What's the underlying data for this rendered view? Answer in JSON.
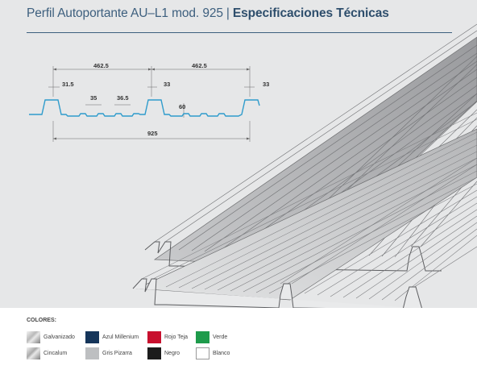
{
  "header": {
    "title_light": "Perfil Autoportante AU–L1 mod. 925",
    "separator": "|",
    "title_bold": "Especificaciones Técnicas"
  },
  "diagram": {
    "labels": {
      "half_width_left": "462.5",
      "half_width_right": "462.5",
      "rib_top_width": "31.5",
      "rib_width_right_a": "33",
      "rib_width_right_b": "33",
      "groove_spacing": "35",
      "groove_gap": "36.5",
      "height": "60",
      "total_width": "925"
    }
  },
  "legend": {
    "title": "COLORES:",
    "colors": [
      {
        "label": "Galvanizado",
        "color": "#b9b9b9",
        "metallic": true
      },
      {
        "label": "Azul Millenium",
        "color": "#15355a",
        "metallic": false
      },
      {
        "label": "Rojo Teja",
        "color": "#c8102e",
        "metallic": false
      },
      {
        "label": "Verde",
        "color": "#1e9b4b",
        "metallic": false
      },
      {
        "label": "Cincalum",
        "color": "#a9a9a9",
        "metallic": true
      },
      {
        "label": "Gris Pizarra",
        "color": "#bdbfc1",
        "metallic": false
      },
      {
        "label": "Negro",
        "color": "#1c1c1c",
        "metallic": false
      },
      {
        "label": "Blanco",
        "color": "#ffffff",
        "metallic": false
      }
    ]
  }
}
